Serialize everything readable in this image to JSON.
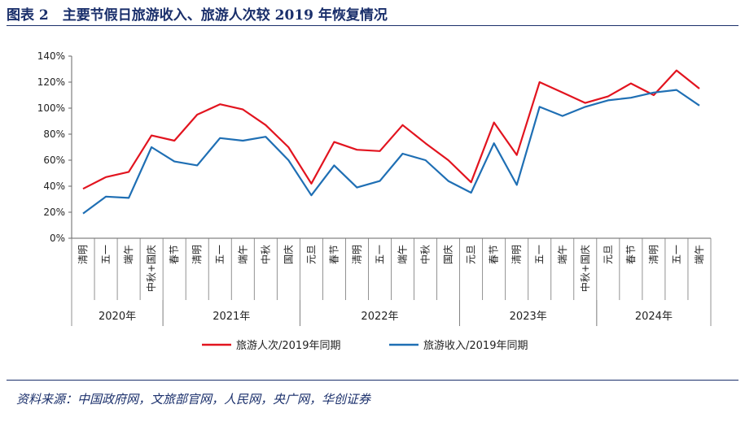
{
  "header": {
    "title": "图表 2　主要节假日旅游收入、旅游人次较 2019 年恢复情况"
  },
  "footer": {
    "source": "资料来源：中国政府网，文旅部官网，人民网，央广网，华创证券"
  },
  "chart_data": {
    "type": "line",
    "title": "主要节假日旅游收入、旅游人次较 2019 年恢复情况",
    "xlabel": "",
    "ylabel": "",
    "ylim": [
      0,
      140
    ],
    "yticks": [
      "0%",
      "20%",
      "40%",
      "60%",
      "80%",
      "100%",
      "120%",
      "140%"
    ],
    "grid": false,
    "legend_position": "bottom-center",
    "categories": [
      "清明",
      "五一",
      "端午",
      "中秋+国庆",
      "春节",
      "清明",
      "五一",
      "端午",
      "中秋",
      "国庆",
      "元旦",
      "春节",
      "清明",
      "五一",
      "端午",
      "中秋",
      "国庆",
      "元旦",
      "春节",
      "清明",
      "五一",
      "端午",
      "中秋+国庆",
      "元旦",
      "春节",
      "清明",
      "五一",
      "端午"
    ],
    "year_groups": [
      {
        "label": "2020年",
        "start": 0,
        "end": 3
      },
      {
        "label": "2021年",
        "start": 4,
        "end": 9
      },
      {
        "label": "2022年",
        "start": 10,
        "end": 16
      },
      {
        "label": "2023年",
        "start": 17,
        "end": 22
      },
      {
        "label": "2024年",
        "start": 23,
        "end": 27
      }
    ],
    "series": [
      {
        "name": "旅游人次/2019年同期",
        "color": "#e2141f",
        "values": [
          38,
          47,
          51,
          79,
          75,
          95,
          103,
          99,
          87,
          70,
          42,
          74,
          68,
          67,
          87,
          73,
          60,
          43,
          89,
          64,
          120,
          112,
          104,
          109,
          119,
          110,
          129,
          115
        ]
      },
      {
        "name": "旅游收入/2019年同期",
        "color": "#1f6fb4",
        "values": [
          19,
          32,
          31,
          70,
          59,
          56,
          77,
          75,
          78,
          60,
          33,
          56,
          39,
          44,
          65,
          60,
          44,
          35,
          73,
          41,
          101,
          94,
          101,
          106,
          108,
          112,
          114,
          102
        ]
      }
    ]
  }
}
